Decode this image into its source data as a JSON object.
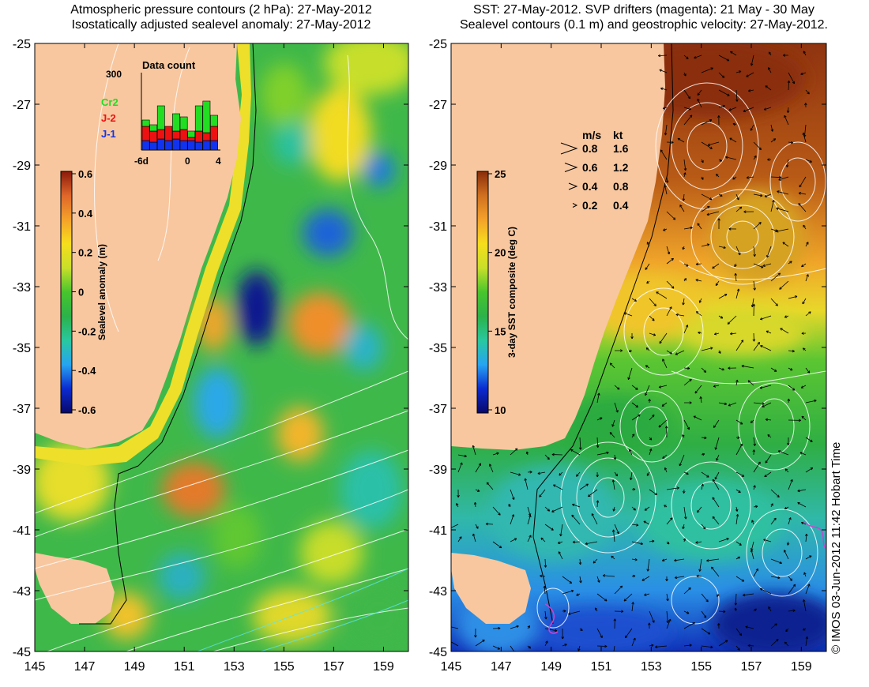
{
  "colors": {
    "land": "#f8c79f",
    "contour": "#ffffff",
    "drifter": "#d040d0",
    "sla_scale": [
      "#08086a",
      "#0a2bd0",
      "#27a4f2",
      "#28c8a0",
      "#2bb24a",
      "#48c52d",
      "#c8df2a",
      "#f6de1c",
      "#f4a22a",
      "#e0662a",
      "#8a1a0a"
    ],
    "sst_scale": [
      "#08086a",
      "#0a2bd0",
      "#27a4f2",
      "#28c8a0",
      "#2bb24a",
      "#48c52d",
      "#c8df2a",
      "#f6de1c",
      "#f4a22a",
      "#d0701f",
      "#8a2d0a"
    ],
    "cr2": "#22dd22",
    "j2": "#ee1111",
    "j1": "#1133ee"
  },
  "left_panel": {
    "title_line1": "Atmospheric pressure contours (2 hPa): 27-May-2012",
    "title_line2": "Isostatically adjusted sealevel anomaly: 27-May-2012",
    "colorbar": {
      "label": "Sealevel anomaly (m)",
      "ticks": [
        "0.6",
        "0.4",
        "0.2",
        "0",
        "-0.2",
        "-0.4",
        "-0.6"
      ]
    },
    "data_count": {
      "title": "Data count",
      "max_label": "300",
      "x_ticks": [
        "-6d",
        "0",
        "4"
      ],
      "legend": [
        "Cr2",
        "J-2",
        "J-1"
      ]
    }
  },
  "right_panel": {
    "title_line1": "SST: 27-May-2012. SVP drifters (magenta): 21 May - 30 May",
    "title_line2": "Sealevel contours (0.1 m) and geostrophic velocity: 27-May-2012.",
    "colorbar": {
      "label": "3-day SST composite (deg C)",
      "ticks": [
        "25",
        "20",
        "15",
        "10"
      ]
    },
    "velocity_key": {
      "header_ms": "m/s",
      "header_kt": "kt",
      "rows": [
        {
          "ms": "0.8",
          "kt": "1.6"
        },
        {
          "ms": "0.6",
          "kt": "1.2"
        },
        {
          "ms": "0.4",
          "kt": "0.8"
        },
        {
          "ms": "0.2",
          "kt": "0.4"
        }
      ]
    }
  },
  "axes": {
    "y_ticks": [
      "-25",
      "-27",
      "-29",
      "-31",
      "-33",
      "-35",
      "-37",
      "-39",
      "-41",
      "-43",
      "-45"
    ],
    "x_ticks": [
      "145",
      "147",
      "149",
      "151",
      "153",
      "155",
      "157",
      "159"
    ]
  },
  "credit": "© IMOS 03-Jun-2012 11:42 Hobart Time"
}
